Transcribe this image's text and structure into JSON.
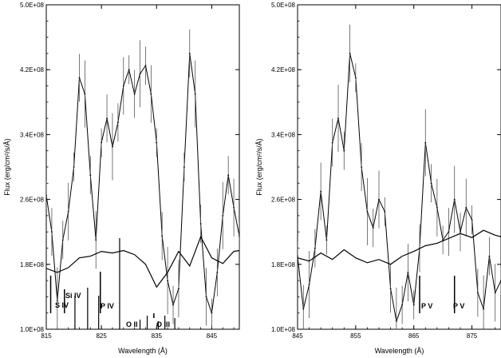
{
  "chart_data": [
    {
      "type": "line",
      "xlabel": "Wavelength (Å)",
      "ylabel": "Flux (erg/cm²/s/Å)",
      "xlim": [
        815,
        850
      ],
      "ylim": [
        100000000,
        500000000
      ],
      "x_ticks": [
        815,
        825,
        835,
        845
      ],
      "x_tick_labels": [
        "815",
        "825",
        "835",
        "845"
      ],
      "y_ticks": [
        100000000,
        180000000,
        260000000,
        340000000,
        420000000,
        500000000
      ],
      "y_tick_labels": [
        "1.0E+08",
        "1.8E+08",
        "2.6E+08",
        "3.4E+08",
        "4.2E+08",
        "5.0E+08"
      ],
      "series": [
        {
          "style": "observed-with-errors",
          "x": [
            815,
            816,
            817,
            818,
            819,
            820,
            821,
            822,
            823,
            824,
            825,
            826,
            827,
            828,
            829,
            830,
            831,
            832,
            833,
            834,
            835,
            836,
            837,
            838,
            839,
            840,
            841,
            842,
            843,
            844,
            845,
            846,
            847,
            848,
            849,
            850
          ],
          "y": [
            265000000,
            220000000,
            135000000,
            210000000,
            245000000,
            300000000,
            410000000,
            390000000,
            290000000,
            210000000,
            330000000,
            360000000,
            325000000,
            355000000,
            400000000,
            420000000,
            390000000,
            415000000,
            425000000,
            390000000,
            330000000,
            215000000,
            160000000,
            130000000,
            150000000,
            300000000,
            440000000,
            390000000,
            230000000,
            140000000,
            120000000,
            170000000,
            240000000,
            290000000,
            250000000,
            215000000
          ]
        },
        {
          "style": "model",
          "x": [
            815,
            817,
            819,
            821,
            823,
            825,
            827,
            829,
            831,
            833,
            835,
            837,
            839,
            841,
            843,
            845,
            847,
            849,
            850
          ],
          "y": [
            175000000,
            170000000,
            176000000,
            188000000,
            190000000,
            196000000,
            194000000,
            197000000,
            192000000,
            180000000,
            152000000,
            170000000,
            196000000,
            178000000,
            214000000,
            188000000,
            181000000,
            196000000,
            197000000
          ]
        }
      ],
      "annotations": [
        {
          "label": "S IV",
          "x": 815.8
        },
        {
          "label": "Si IV",
          "x": 818.3
        },
        {
          "label": "P IV",
          "x": 824.8
        },
        {
          "label": "O II",
          "x": 834.5
        },
        {
          "label": "O III",
          "x": 837.3
        }
      ]
    },
    {
      "type": "line",
      "xlabel": "Wavelength (Å)",
      "ylabel": "Flux (erg/cm²/s/Å)",
      "xlim": [
        845,
        880
      ],
      "ylim": [
        100000000,
        500000000
      ],
      "x_ticks": [
        845,
        855,
        865,
        875
      ],
      "x_tick_labels": [
        "845",
        "855",
        "865",
        "875"
      ],
      "y_ticks": [
        100000000,
        180000000,
        260000000,
        340000000,
        420000000,
        500000000
      ],
      "y_tick_labels": [
        "1.0E+08",
        "1.8E+08",
        "2.6E+08",
        "3.4E+08",
        "4.2E+08",
        "5.0E+08"
      ],
      "series": [
        {
          "style": "observed-with-errors",
          "x": [
            845,
            846,
            847,
            848,
            849,
            850,
            851,
            852,
            853,
            854,
            855,
            856,
            857,
            858,
            859,
            860,
            861,
            862,
            863,
            864,
            865,
            866,
            867,
            868,
            869,
            870,
            871,
            872,
            873,
            874,
            875,
            876,
            877,
            878,
            879,
            880
          ],
          "y": [
            190000000,
            125000000,
            155000000,
            200000000,
            270000000,
            210000000,
            330000000,
            360000000,
            320000000,
            440000000,
            410000000,
            300000000,
            245000000,
            225000000,
            260000000,
            245000000,
            150000000,
            110000000,
            130000000,
            170000000,
            130000000,
            200000000,
            330000000,
            280000000,
            250000000,
            210000000,
            220000000,
            260000000,
            220000000,
            250000000,
            235000000,
            145000000,
            125000000,
            190000000,
            145000000,
            160000000
          ]
        },
        {
          "style": "model",
          "x": [
            845,
            847,
            849,
            851,
            853,
            855,
            857,
            859,
            861,
            863,
            865,
            867,
            869,
            871,
            873,
            875,
            877,
            879,
            880
          ],
          "y": [
            188000000,
            184000000,
            194000000,
            186000000,
            198000000,
            188000000,
            182000000,
            186000000,
            180000000,
            190000000,
            196000000,
            203000000,
            206000000,
            212000000,
            218000000,
            213000000,
            222000000,
            216000000,
            214000000
          ]
        }
      ],
      "annotations": [
        {
          "label": "P V",
          "x": 866
        },
        {
          "label": "P V",
          "x": 872
        }
      ]
    }
  ]
}
